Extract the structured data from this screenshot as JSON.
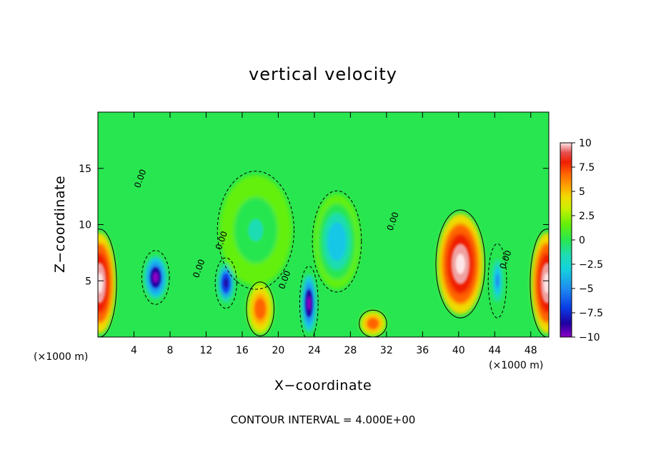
{
  "chart_data": {
    "type": "heatmap",
    "title": "vertical velocity",
    "xlabel": "X−coordinate",
    "ylabel": "Z−coordinate",
    "x_unit_left": "(×1000 m)",
    "x_unit_right": "(×1000 m)",
    "xlim": [
      0,
      50
    ],
    "ylim": [
      0,
      20
    ],
    "x_ticks": [
      4,
      8,
      12,
      16,
      20,
      24,
      28,
      32,
      36,
      40,
      44,
      48
    ],
    "x_tick_labels": [
      "4",
      "8",
      "12",
      "16",
      "20",
      "24",
      "28",
      "32",
      "36",
      "40",
      "44",
      "48"
    ],
    "y_ticks": [
      5,
      10,
      15
    ],
    "y_tick_labels": [
      "5",
      "10",
      "15"
    ],
    "colorbar": {
      "range": [
        -10,
        10
      ],
      "ticks": [
        10,
        7.5,
        5,
        2.5,
        0,
        -2.5,
        -5,
        -7.5,
        -10
      ],
      "tick_labels": [
        "10",
        "7.5",
        "5",
        "2.5",
        "0",
        "−2.5",
        "−5",
        "−7.5",
        "−10"
      ],
      "colors": [
        "#8c00c8",
        "#1e00a0",
        "#0a3ce6",
        "#1e8cf0",
        "#14c8e6",
        "#1edcb4",
        "#28e650",
        "#64f00a",
        "#c8f000",
        "#f0dc00",
        "#ffa000",
        "#ff6400",
        "#f01e00",
        "#dc1e1e",
        "#f0a0a0",
        "#ffe6e6"
      ]
    },
    "contour_labels": [
      "0.00",
      "0.00",
      "0.00",
      "0.00",
      "0.00",
      "0.00"
    ],
    "contour_interval_text": "CONTOUR INTERVAL = 4.000E+00",
    "features": [
      {
        "x": 0.2,
        "z": 4.8,
        "value": 10,
        "sx": 1.1,
        "sz": 3.2
      },
      {
        "x": 49.8,
        "z": 4.8,
        "value": 10,
        "sx": 1.1,
        "sz": 3.2
      },
      {
        "x": 6.4,
        "z": 5.3,
        "value": -10,
        "sx": 0.9,
        "sz": 1.6
      },
      {
        "x": 14.2,
        "z": 4.8,
        "value": -9,
        "sx": 0.7,
        "sz": 1.5
      },
      {
        "x": 23.4,
        "z": 3.0,
        "value": -10,
        "sx": 0.6,
        "sz": 2.2
      },
      {
        "x": 18.0,
        "z": 2.5,
        "value": 5,
        "sx": 0.9,
        "sz": 1.6
      },
      {
        "x": 30.5,
        "z": 1.2,
        "value": 5,
        "sx": 0.9,
        "sz": 0.8
      },
      {
        "x": 40.2,
        "z": 6.5,
        "value": 10,
        "sx": 1.6,
        "sz": 3.2
      },
      {
        "x": 44.3,
        "z": 5.0,
        "value": -6,
        "sx": 0.6,
        "sz": 2.2
      },
      {
        "x": 26.5,
        "z": 8.5,
        "value": -5,
        "sx": 1.6,
        "sz": 3.0
      },
      {
        "x": 17.5,
        "z": 9.5,
        "value": -3,
        "sx": 2.5,
        "sz": 3.5
      }
    ]
  }
}
